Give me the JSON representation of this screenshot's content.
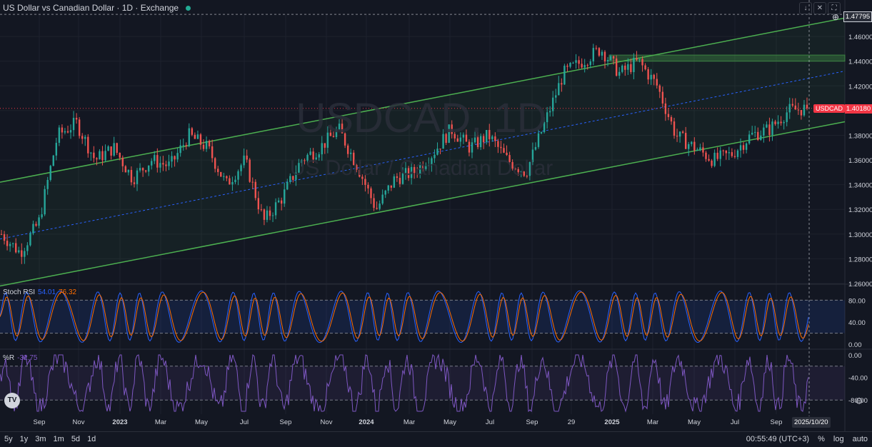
{
  "header": {
    "title": "US Dollar vs Canadian Dollar · 1D · Exchange",
    "controls": [
      "↓",
      "✕",
      "⛶"
    ]
  },
  "watermark": {
    "symbol": "USDCAD, 1D",
    "name": "US Dollar / Canadian Dollar"
  },
  "price_axis": {
    "labels": [
      "1.46000",
      "1.44000",
      "1.42000",
      "1.40000",
      "1.38000",
      "1.36000",
      "1.34000",
      "1.32000",
      "1.30000",
      "1.28000",
      "1.26000"
    ],
    "crosshair_price": "1.47795",
    "symbol_tag": "USDCAD",
    "last_price": "1.40180"
  },
  "stoch_rsi": {
    "label": "Stoch RSI",
    "k": "54.01",
    "d": "76.32",
    "axis": [
      "80.00",
      "40.00",
      "0.00"
    ],
    "colors": {
      "k": "#2962ff",
      "d": "#ff6d00",
      "band": "#2962ff"
    }
  },
  "williams_r": {
    "label": "%R",
    "value": "-32.75",
    "axis": [
      "0.00",
      "-40.00",
      "-80.00"
    ],
    "color": "#7e57c2"
  },
  "time_axis": {
    "labels": [
      "Sep",
      "Nov",
      "2023",
      "Mar",
      "May",
      "Jul",
      "Sep",
      "Nov",
      "2024",
      "Mar",
      "May",
      "Jul",
      "Sep",
      "29",
      "2025",
      "Mar",
      "May",
      "Jul",
      "Sep"
    ],
    "crosshair_date": "2025/10/20"
  },
  "bottom_bar": {
    "ranges": [
      "5y",
      "1y",
      "3m",
      "1m",
      "5d",
      "1d"
    ],
    "time": "00:55:49 (UTC+3)",
    "options": [
      "%",
      "log",
      "auto"
    ]
  },
  "colors": {
    "background": "#131722",
    "up": "#26a69a",
    "down": "#ef5350",
    "channel": "#4caf50",
    "midline": "#2962ff",
    "last_price": "#f23645"
  },
  "chart_data": {
    "type": "candlestick",
    "symbol": "USDCAD",
    "interval": "1D",
    "ylim": [
      1.26,
      1.478
    ],
    "x": [
      "Sep",
      "Nov",
      "2023",
      "Mar",
      "May",
      "Jul",
      "Sep",
      "Nov",
      "2024",
      "Mar",
      "May",
      "Jul",
      "Sep",
      "29",
      "2025",
      "Mar",
      "May",
      "Jul",
      "Sep"
    ],
    "close_path": [
      1.3,
      1.285,
      1.31,
      1.38,
      1.39,
      1.36,
      1.37,
      1.345,
      1.36,
      1.355,
      1.38,
      1.37,
      1.34,
      1.36,
      1.31,
      1.33,
      1.36,
      1.37,
      1.385,
      1.355,
      1.32,
      1.345,
      1.35,
      1.365,
      1.385,
      1.37,
      1.38,
      1.36,
      1.35,
      1.39,
      1.43,
      1.44,
      1.45,
      1.43,
      1.44,
      1.42,
      1.38,
      1.37,
      1.36,
      1.365,
      1.38,
      1.385,
      1.4,
      1.4018
    ],
    "last_close": 1.4018,
    "channel": {
      "upper": [
        1.342,
        1.475
      ],
      "lower": [
        1.258,
        1.391
      ],
      "mid": [
        1.296,
        1.432
      ]
    },
    "supply_zone": [
      1.44,
      1.445
    ]
  }
}
